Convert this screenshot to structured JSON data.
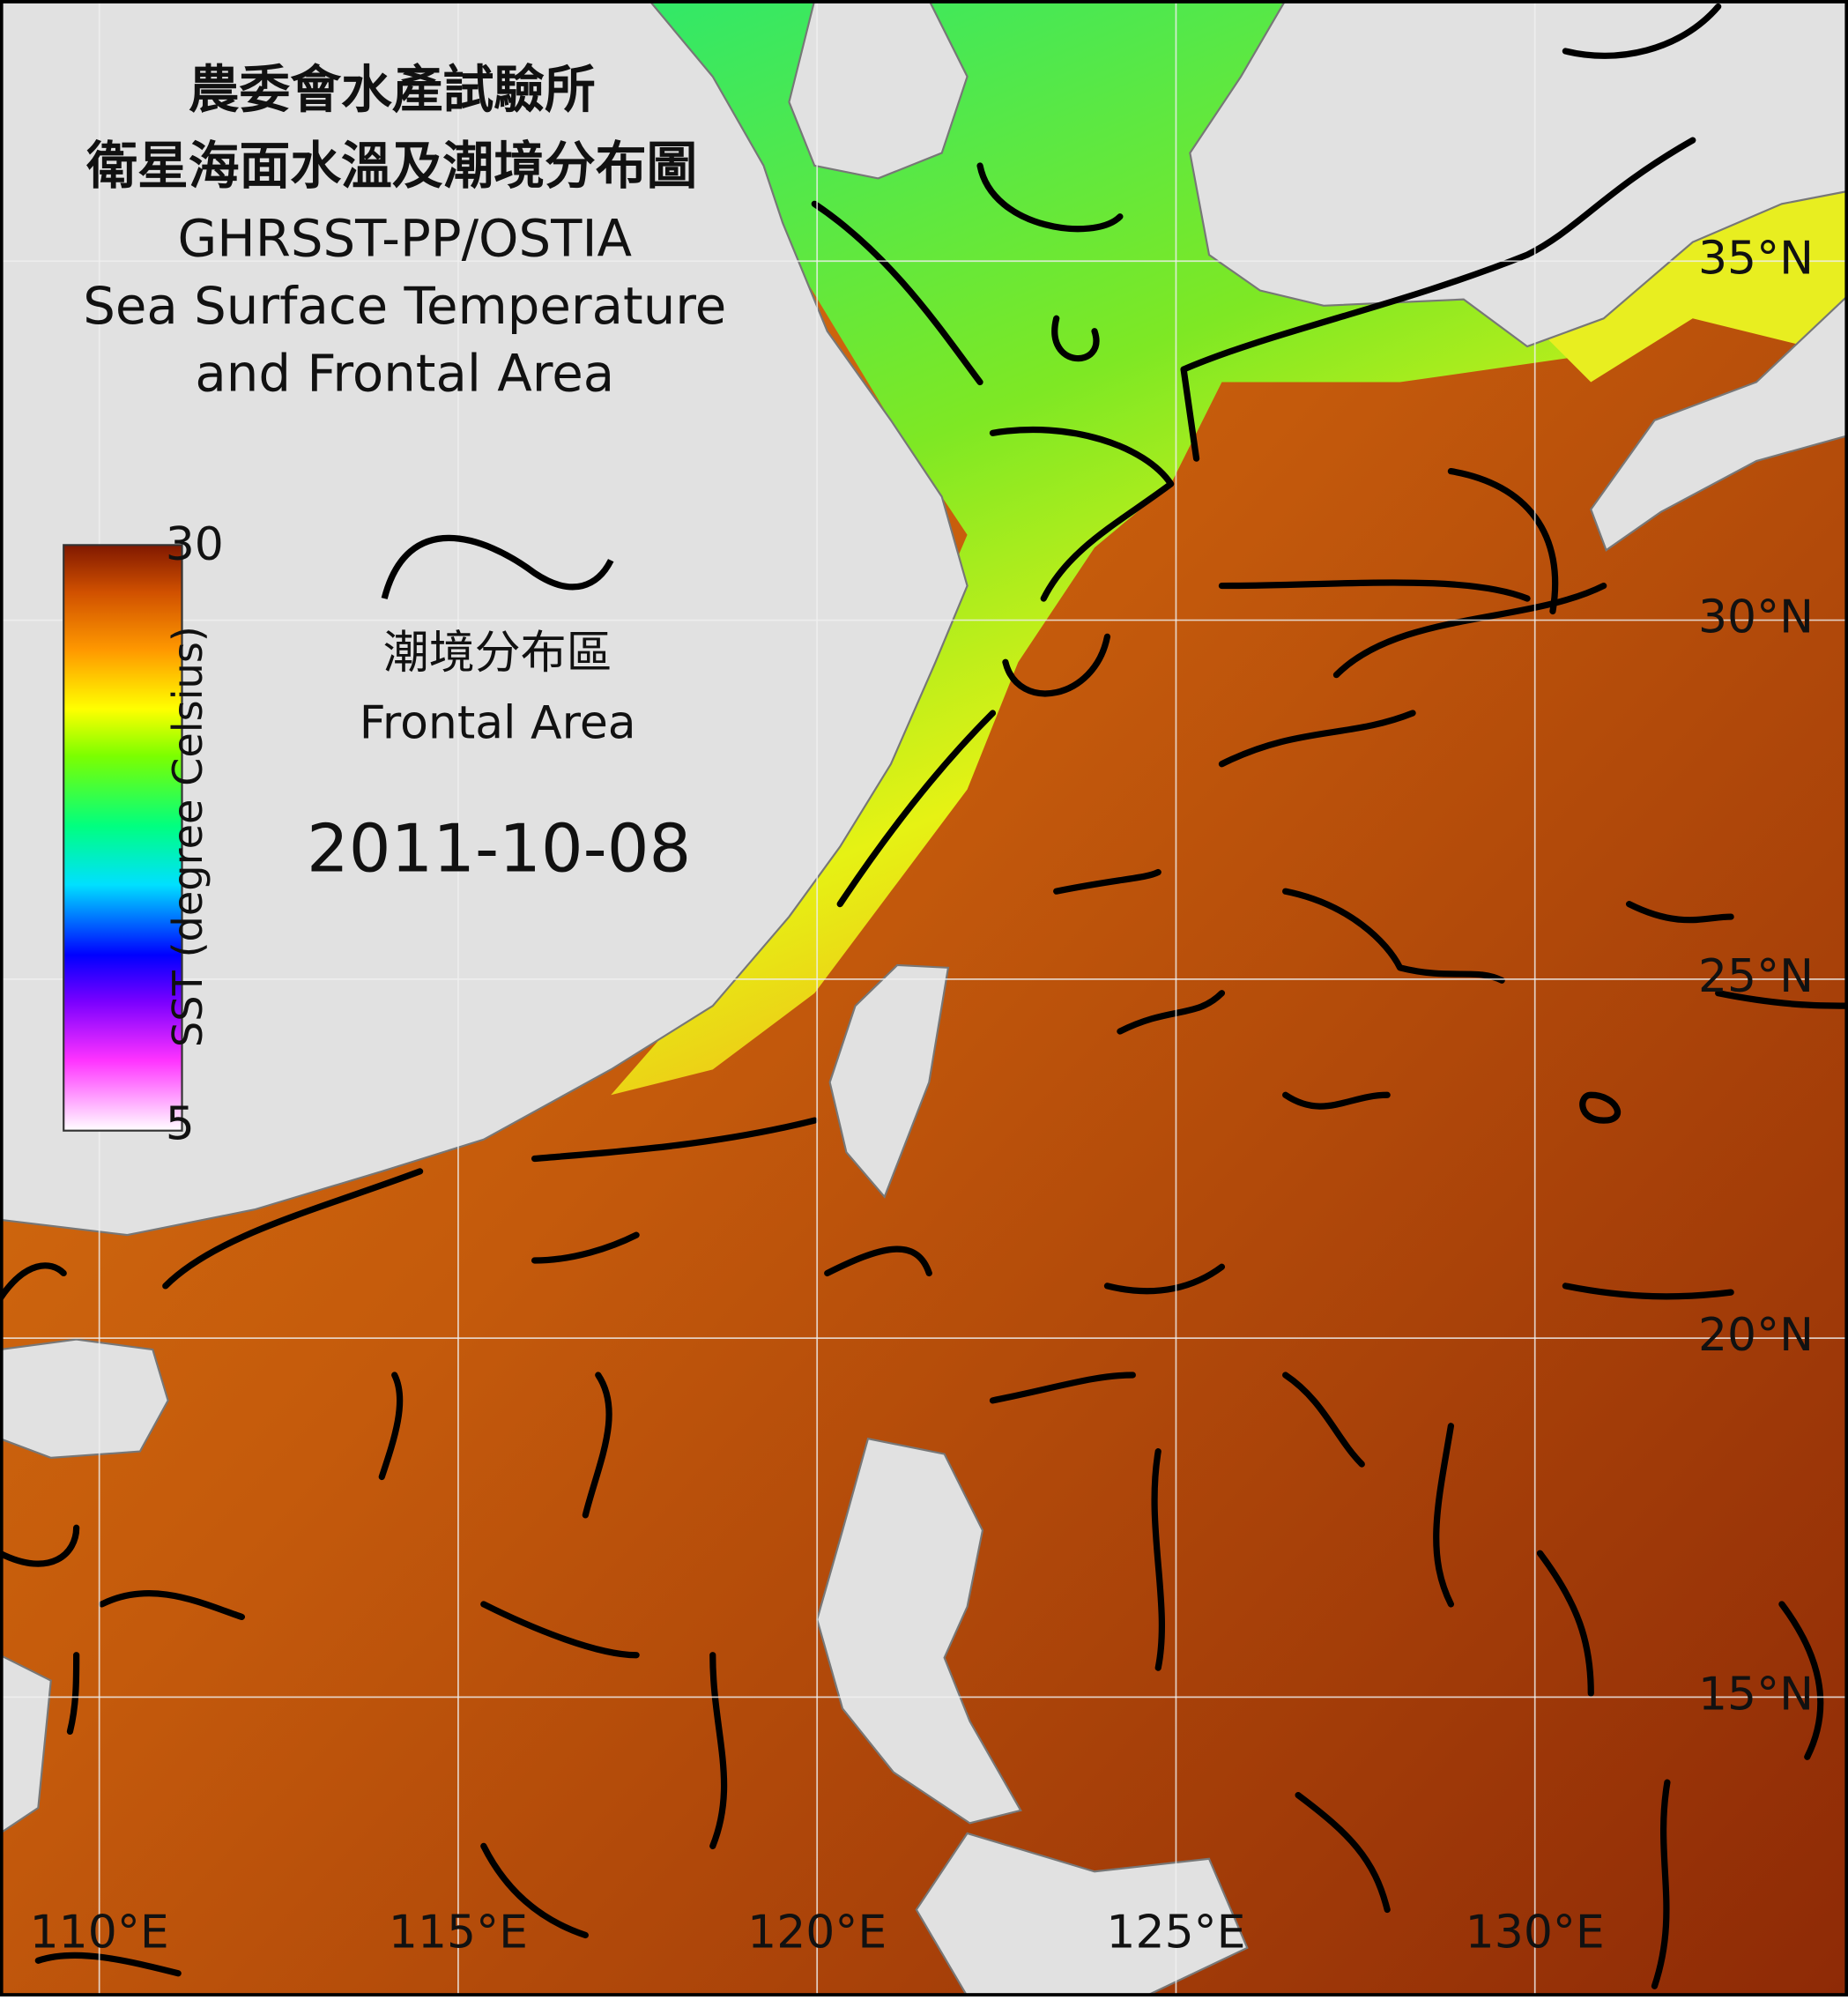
{
  "header": {
    "title_zh": "農委會水產試驗所",
    "subtitle_zh": "衛星海面水溫及潮境分布圖",
    "source": "GHRSST-PP/OSTIA",
    "title_en_line1": "Sea Surface Temperature",
    "title_en_line2": "and Frontal Area"
  },
  "colorbar": {
    "label": "SST (degree Celsius)",
    "max": 30,
    "min": 5
  },
  "legend": {
    "label_zh": "潮境分布區",
    "label_en": "Frontal Area"
  },
  "date": "2011-10-08",
  "map": {
    "lon_labels": [
      "110°E",
      "115°E",
      "120°E",
      "125°E",
      "130°E"
    ],
    "lat_labels": [
      "35°N",
      "30°N",
      "25°N",
      "20°N",
      "15°N"
    ]
  }
}
